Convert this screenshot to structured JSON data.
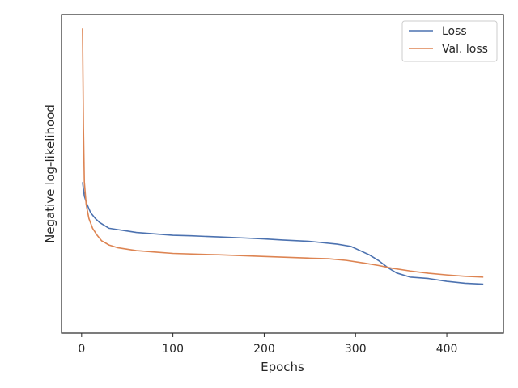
{
  "chart_data": {
    "type": "line",
    "title": "",
    "xlabel": "Epochs",
    "ylabel": "Negative log-likelihood",
    "xlim": [
      -22,
      462
    ],
    "ylim": [
      -0.09,
      1.05
    ],
    "x_ticks": [
      0,
      100,
      200,
      300,
      400
    ],
    "y_ticks_shown": false,
    "grid": false,
    "legend": {
      "placement": "top-right"
    },
    "series": [
      {
        "name": "Loss",
        "color": "#4c72b0",
        "points": [
          [
            1,
            0.45
          ],
          [
            3,
            0.4
          ],
          [
            6,
            0.37
          ],
          [
            10,
            0.34
          ],
          [
            15,
            0.32
          ],
          [
            20,
            0.305
          ],
          [
            25,
            0.295
          ],
          [
            30,
            0.285
          ],
          [
            40,
            0.28
          ],
          [
            50,
            0.275
          ],
          [
            60,
            0.27
          ],
          [
            80,
            0.265
          ],
          [
            100,
            0.26
          ],
          [
            120,
            0.258
          ],
          [
            150,
            0.254
          ],
          [
            180,
            0.25
          ],
          [
            200,
            0.247
          ],
          [
            220,
            0.243
          ],
          [
            250,
            0.238
          ],
          [
            280,
            0.228
          ],
          [
            295,
            0.22
          ],
          [
            305,
            0.205
          ],
          [
            315,
            0.19
          ],
          [
            325,
            0.17
          ],
          [
            335,
            0.145
          ],
          [
            345,
            0.125
          ],
          [
            360,
            0.11
          ],
          [
            380,
            0.105
          ],
          [
            400,
            0.095
          ],
          [
            420,
            0.088
          ],
          [
            440,
            0.085
          ]
        ]
      },
      {
        "name": "Val. loss",
        "color": "#dd8452",
        "points": [
          [
            1,
            1.0
          ],
          [
            2,
            0.65
          ],
          [
            3,
            0.45
          ],
          [
            5,
            0.37
          ],
          [
            8,
            0.32
          ],
          [
            12,
            0.285
          ],
          [
            17,
            0.26
          ],
          [
            22,
            0.24
          ],
          [
            30,
            0.225
          ],
          [
            40,
            0.215
          ],
          [
            60,
            0.205
          ],
          [
            80,
            0.2
          ],
          [
            100,
            0.195
          ],
          [
            150,
            0.19
          ],
          [
            200,
            0.184
          ],
          [
            250,
            0.178
          ],
          [
            270,
            0.176
          ],
          [
            290,
            0.17
          ],
          [
            310,
            0.16
          ],
          [
            325,
            0.152
          ],
          [
            340,
            0.142
          ],
          [
            360,
            0.132
          ],
          [
            380,
            0.124
          ],
          [
            400,
            0.118
          ],
          [
            420,
            0.113
          ],
          [
            440,
            0.11
          ]
        ]
      }
    ]
  }
}
